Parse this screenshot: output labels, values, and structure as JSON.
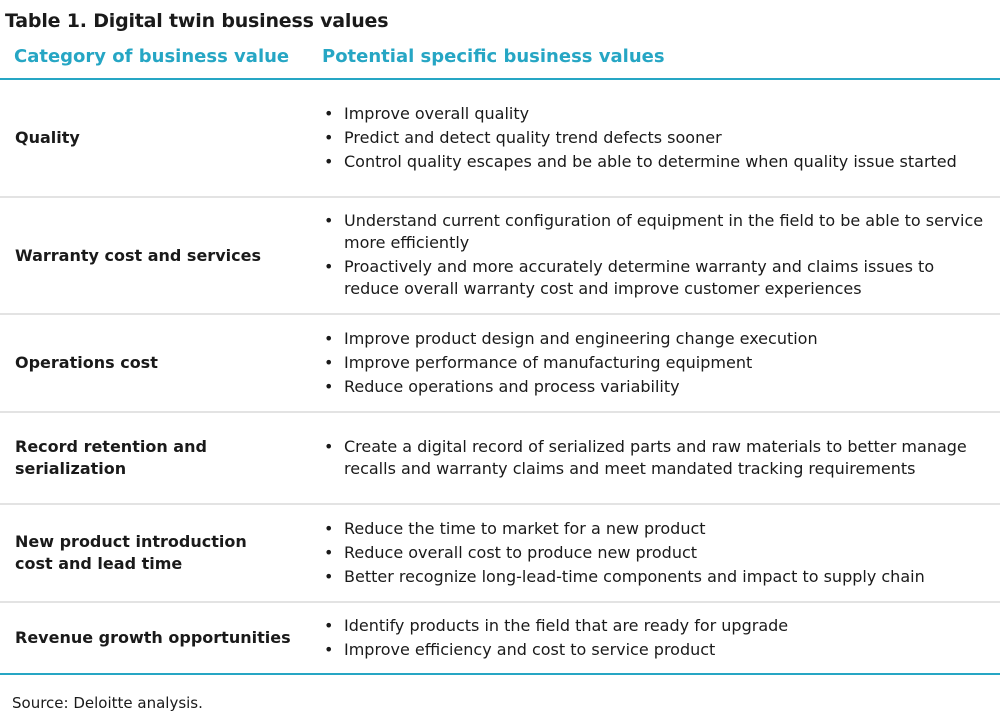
{
  "title": "Table 1. Digital twin business values",
  "headers": {
    "category": "Category of business value",
    "values": "Potential specific business values"
  },
  "rows": [
    {
      "category": "Quality",
      "values": [
        "Improve overall quality",
        "Predict and detect quality trend defects sooner",
        "Control quality escapes and be able to determine when quality issue started"
      ]
    },
    {
      "category": "Warranty cost and services",
      "values": [
        "Understand current configuration of equipment in the field to be able to service more efficiently",
        "Proactively and more accurately determine warranty and claims issues to reduce overall warranty cost and improve customer experiences"
      ]
    },
    {
      "category": "Operations cost",
      "values": [
        "Improve product design and engineering change execution",
        "Improve performance of manufacturing equipment",
        "Reduce operations and process variability"
      ]
    },
    {
      "category": "Record retention and serialization",
      "values": [
        "Create a digital record of serialized parts and raw materials to better manage recalls and warranty claims and meet mandated tracking requirements"
      ]
    },
    {
      "category": "New product introduction cost and lead time",
      "values": [
        "Reduce the time to market for a new product",
        "Reduce overall cost to produce new product",
        "Better recognize long-lead-time components and impact to supply chain"
      ]
    },
    {
      "category": "Revenue growth opportunities",
      "values": [
        "Identify products in the field that are ready for upgrade",
        "Improve efficiency and cost to service product"
      ]
    }
  ],
  "bullet_glyph": "•",
  "source": "Source: Deloitte analysis.",
  "colors": {
    "accent": "#26a6c4",
    "divider": "#e3e3e3",
    "text": "#1a1a1a"
  }
}
